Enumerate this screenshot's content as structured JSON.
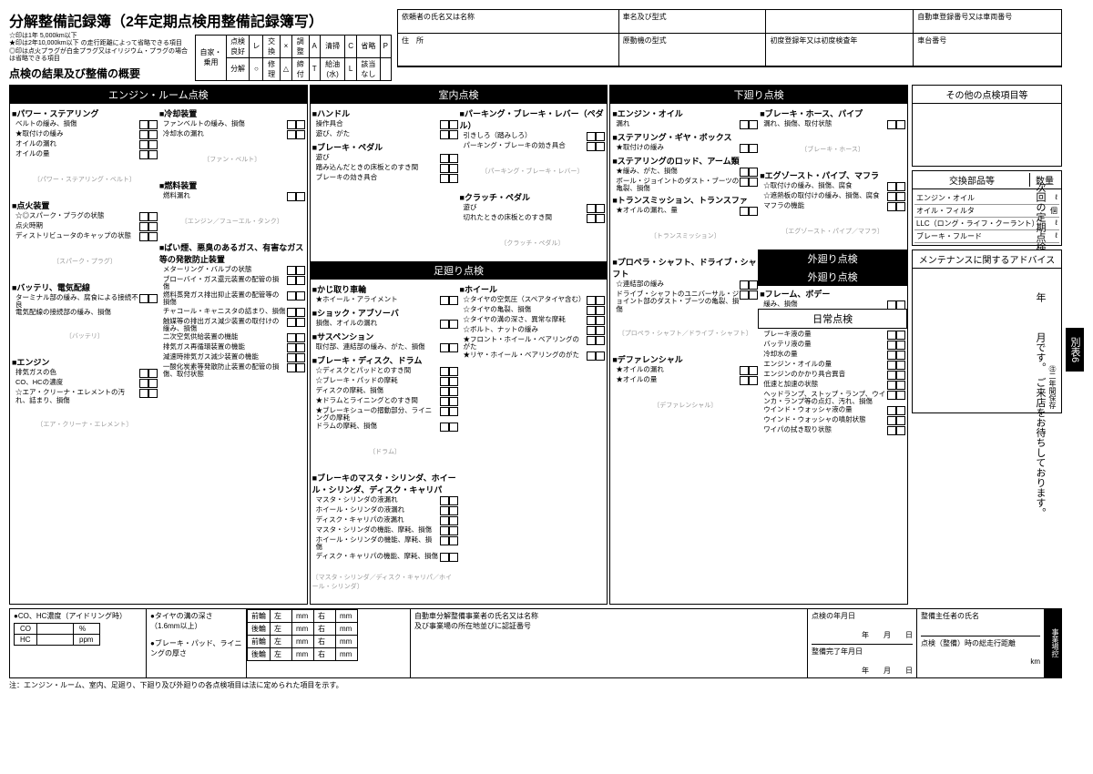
{
  "title": "分解整備記録簿（2年定期点検用整備記録簿写）",
  "notes": "☆印は1年 5,000km以下\n★印は2年10,000km以下 の走行距離によって省略できる項目\n◎印は点火プラグが白金プラグ又はイリジウム・プラグの場合は省略できる項目",
  "subtitle": "点検の結果及び整備の概要",
  "legend": {
    "row_labels": [
      "自家・乗用"
    ],
    "cells": [
      [
        "点検良好",
        "レ",
        "交換",
        "×",
        "調整",
        "A",
        "清掃",
        "C",
        "省略",
        "P"
      ],
      [
        "分解",
        "○",
        "修理",
        "△",
        "締付",
        "T",
        "給油(水)",
        "L",
        "該当なし",
        ""
      ]
    ]
  },
  "info_labels": [
    "依頼者の氏名又は名称",
    "車名及び型式",
    "",
    "自動車登録番号又は車両番号",
    "住　所",
    "原動機の型式",
    "初度登録年又は初度検査年",
    "車台番号"
  ],
  "sections": {
    "engine_room": {
      "header": "エンジン・ルーム点検",
      "groups": [
        {
          "title": "■パワー・ステアリング",
          "items": [
            "ベルトの緩み、損傷",
            "★取付けの緩み",
            "オイルの漏れ",
            "オイルの量"
          ],
          "diag": "パワー・ステアリング・ベルト"
        },
        {
          "title": "■冷却装置",
          "items": [
            "ファンベルトの緩み、損傷",
            "冷却水の漏れ"
          ],
          "diag": "ファン・ベルト"
        },
        {
          "title": "■点火装置",
          "items": [
            "☆◎スパーク・プラグの状態",
            "点火時期",
            "ディストリビュータのキャップの状態"
          ],
          "diag": "スパーク・プラグ"
        },
        {
          "title": "■燃料装置",
          "items": [
            "燃料漏れ"
          ],
          "diag": "エンジン／フューエル・タンク"
        },
        {
          "title": "■バッテリ、電気配線",
          "items": [
            "ターミナル部の緩み、腐食による接続不良\n電気配線の接続部の緩み、損傷"
          ],
          "diag": "バッテリ"
        },
        {
          "title": "■ばい煙、悪臭のあるガス、有害なガス等の発散防止装置",
          "items": [
            "メターリング・バルブの状態",
            "ブローバイ・ガス還元装置の配管の損傷",
            "燃料蒸発ガス排出抑止装置の配管等の損傷",
            "チャコール・キャニスタの詰まり、損傷",
            "触媒等の排出ガス減少装置の取付けの緩み、損傷",
            "二次空気供給装置の機能",
            "排気ガス再循環装置の機能",
            "減速時排気ガス減少装置の機能",
            "一酸化炭素等発散防止装置の配管の損傷、取付状態"
          ]
        },
        {
          "title": "■エンジン",
          "items": [
            "排気ガスの色",
            "CO、HCの濃度",
            "☆エア・クリーナ・エレメントの汚れ、詰まり、損傷"
          ],
          "diag": "エア・クリーナ・エレメント"
        }
      ]
    },
    "interior": {
      "header": "室内点検",
      "groups": [
        {
          "title": "■ハンドル",
          "items": [
            "操作具合",
            "遊び、がた"
          ]
        },
        {
          "title": "■ブレーキ・ペダル",
          "items": [
            "遊び",
            "踏み込んだときの床板とのすき間",
            "ブレーキの効き具合"
          ]
        },
        {
          "title": "■パーキング・ブレーキ・レバー（ペダル）",
          "items": [
            "引きしろ（踏みしろ）",
            "パーキング・ブレーキの効き具合"
          ],
          "diag": "パーキング・ブレーキ・レバー"
        },
        {
          "title": "■クラッチ・ペダル",
          "items": [
            "遊び",
            "切れたときの床板とのすき間"
          ],
          "diag": "クラッチ・ペダル"
        }
      ]
    },
    "undercarriage": {
      "header": "足廻り点検",
      "groups": [
        {
          "title": "■かじ取り車輪",
          "items": [
            "★ホイール・アライメント"
          ]
        },
        {
          "title": "■ショック・アブソーバ",
          "items": [
            "損傷、オイルの漏れ"
          ]
        },
        {
          "title": "■サスペンション",
          "items": [
            "取付部、連結部の緩み、がた、損傷"
          ]
        },
        {
          "title": "■ホイール",
          "items": [
            "☆タイヤの空気圧（スペアタイヤ含む）",
            "☆タイヤの亀裂、損傷",
            "☆タイヤの溝の深さ、異常な摩耗",
            "☆ボルト、ナットの緩み",
            "★フロント・ホイール・ベアリングのがた",
            "★リヤ・ホイール・ベアリングのがた"
          ]
        },
        {
          "title": "■ブレーキ・ディスク、ドラム",
          "items": [
            "☆ディスクとパッドとのすき間",
            "☆ブレーキ・パッドの摩耗",
            "ディスクの摩耗、損傷",
            "★ドラムとライニングとのすき間",
            "★ブレーキシューの摺動部分、ライニングの摩耗",
            "ドラムの摩耗、損傷"
          ],
          "diag": "ドラム"
        },
        {
          "title": "■ブレーキのマスタ・シリンダ、ホイール・シリンダ、ディスク・キャリパ",
          "items": [
            "マスタ・シリンダの液漏れ",
            "ホイール・シリンダの液漏れ",
            "ディスク・キャリパの液漏れ",
            "マスタ・シリンダの機能、摩耗、損傷",
            "ホイール・シリンダの機能、摩耗、損傷",
            "ディスク・キャリパの機能、摩耗、損傷"
          ],
          "diag": "マスタ・シリンダ／ディスク・キャリパ／ホイール・シリンダ"
        }
      ]
    },
    "lower": {
      "header": "下廻り点検",
      "groups": [
        {
          "title": "■エンジン・オイル",
          "items": [
            "漏れ"
          ]
        },
        {
          "title": "■ステアリング・ギヤ・ボックス",
          "items": [
            "★取付けの緩み"
          ]
        },
        {
          "title": "■ステアリングのロッド、アーム類",
          "items": [
            "★緩み、がた、損傷",
            "ボール・ジョイントのダスト・ブーツの亀裂、損傷"
          ]
        },
        {
          "title": "■トランスミッション、トランスファ",
          "items": [
            "★オイルの漏れ、量"
          ],
          "diag": "トランスミッション"
        },
        {
          "title": "■ブレーキ・ホース、パイプ",
          "items": [
            "漏れ、損傷、取付状態"
          ],
          "diag": "ブレーキ・ホース"
        },
        {
          "title": "■エグゾースト・パイプ、マフラ",
          "items": [
            "☆取付けの緩み、損傷、腐食",
            "☆遮熱板の取付けの緩み、損傷、腐食",
            "マフラの機能"
          ],
          "diag": "エグゾースト・パイプ／マフラ"
        },
        {
          "title": "■プロペラ・シャフト、ドライブ・シャフト",
          "items": [
            "☆連結部の緩み",
            "ドライブ・シャフトのユニバーサル・ジョイント部のダスト・ブーツの亀裂、損傷"
          ],
          "diag": "プロペラ・シャフト／ドライブ・シャフト"
        },
        {
          "title": "■デファレンシャル",
          "items": [
            "★オイルの漏れ",
            "★オイルの量"
          ],
          "diag": "デファレンシャル"
        }
      ]
    },
    "exterior": {
      "header": "外廻り点検",
      "groups": [
        {
          "title": "■フレーム、ボデー",
          "items": [
            "緩み、損傷"
          ]
        }
      ]
    },
    "daily": {
      "header": "日常点検",
      "groups": [
        {
          "title": "",
          "items": [
            "ブレーキ液の量",
            "バッテリ液の量",
            "冷却水の量",
            "エンジン・オイルの量",
            "エンジンのかかり具合異音",
            "低速と加速の状態",
            "ヘッドランプ、ストップ・ランプ、ウインカ・ランプ等の点灯、汚れ、損傷",
            "ウインド・ウォッシャ液の量",
            "ウインド・ウォッシャの噴射状態",
            "ワイパの拭き取り状態"
          ]
        }
      ]
    }
  },
  "right": {
    "other_header": "その他の点検項目等",
    "next_text": "次回の定期点検は　　　年　　　月です。　ご来店をお待ちしております。",
    "parts_header": "交換部品等",
    "parts_qty": "数量",
    "parts": [
      [
        "エンジン・オイル",
        "ℓ"
      ],
      [
        "オイル・フィルタ",
        "個"
      ],
      [
        "LLC（ロング・ライフ・クーラント）",
        "ℓ"
      ],
      [
        "ブレーキ・フルード",
        "ℓ"
      ]
    ],
    "maint_header": "メンテナンスに関するアドバイス",
    "retain": "㊟二年間保存"
  },
  "footer": {
    "co_label": "●CO、HC濃度（アイドリング時）",
    "co_rows": [
      [
        "CO",
        "%"
      ],
      [
        "HC",
        "ppm"
      ]
    ],
    "tire_label": "●タイヤの溝の深さ（1.6mm以上）",
    "brake_label": "●ブレーキ・パッド、ライニングの厚さ",
    "tire_rows": [
      [
        "前輪",
        "左",
        "mm",
        "右",
        "mm"
      ],
      [
        "後輪",
        "左",
        "mm",
        "右",
        "mm"
      ],
      [
        "前輪",
        "左",
        "mm",
        "右",
        "mm"
      ],
      [
        "後輪",
        "左",
        "mm",
        "右",
        "mm"
      ]
    ],
    "biz_label": "自動車分解整備事業者の氏名又は名称\n及び事業場の所在地並びに認証番号",
    "date_label": "点検の年月日",
    "date_fmt": "年　　月　　日",
    "mgr_label": "整備主任者の氏名",
    "complete_label": "整備完了年月日",
    "odo_label": "点検（整備）時の総走行距離",
    "odo_unit": "km",
    "side_tag": "事業場控",
    "note": "注：エンジン・ルーム、室内、足廻り、下廻り及び外廻りの各点検項目は法に定められた項目を示す。"
  },
  "side_tag_top": "別表6"
}
